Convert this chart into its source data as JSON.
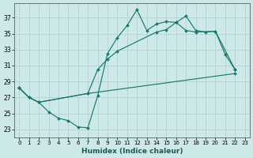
{
  "background_color": "#cde8e8",
  "grid_color": "#b0cccc",
  "line_color": "#1a7a6a",
  "xlabel": "Humidex (Indice chaleur)",
  "xlim": [
    -0.5,
    23.5
  ],
  "ylim": [
    22.0,
    38.8
  ],
  "xticks": [
    0,
    1,
    2,
    3,
    4,
    5,
    6,
    7,
    8,
    9,
    10,
    11,
    12,
    13,
    14,
    15,
    16,
    17,
    18,
    19,
    20,
    21,
    22,
    23
  ],
  "yticks": [
    23,
    25,
    27,
    29,
    31,
    33,
    35,
    37
  ],
  "s1x": [
    0,
    1,
    2,
    3,
    4,
    5,
    6,
    7,
    8,
    9,
    10,
    11,
    12,
    13,
    14,
    15,
    16,
    17,
    18,
    19,
    20,
    21,
    22
  ],
  "s1y": [
    28.2,
    27.0,
    26.4,
    25.2,
    24.4,
    24.1,
    23.3,
    23.2,
    27.2,
    32.5,
    34.5,
    36.0,
    38.0,
    35.4,
    36.2,
    36.5,
    36.4,
    37.2,
    35.4,
    35.2,
    35.3,
    32.4,
    30.5
  ],
  "s2x": [
    0,
    1,
    2,
    7,
    8,
    9,
    10,
    14,
    15,
    16,
    17,
    18,
    20,
    22
  ],
  "s2y": [
    28.2,
    27.0,
    26.4,
    27.5,
    30.5,
    31.8,
    32.8,
    35.2,
    35.5,
    36.4,
    35.4,
    35.2,
    35.3,
    30.5
  ],
  "s3x": [
    0,
    1,
    2,
    7,
    22
  ],
  "s3y": [
    28.2,
    27.0,
    26.4,
    27.5,
    30.0
  ]
}
